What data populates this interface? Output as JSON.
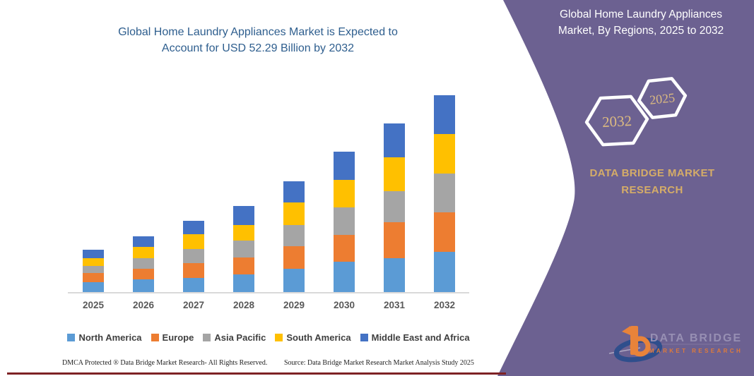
{
  "left": {
    "title_line1": "Global Home Laundry Appliances Market is Expected to",
    "title_line2": "Account for USD 52.29 Billion by 2032",
    "footer_left": "DMCA Protected ® Data Bridge Market Research-  All Rights Reserved.",
    "footer_right": "Source: Data Bridge Market Research  Market Analysis Study 2025"
  },
  "chart_data": {
    "type": "bar",
    "stacked": true,
    "title": "Global Home Laundry Appliances Market is Expected to Account for USD 52.29 Billion by 2032",
    "unit": "USD Billion",
    "categories": [
      "2025",
      "2026",
      "2027",
      "2028",
      "2029",
      "2030",
      "2031",
      "2032"
    ],
    "series": [
      {
        "name": "North America",
        "color": "#5B9BD5",
        "values": [
          2.63,
          3.3,
          3.81,
          4.6,
          6.25,
          8.13,
          8.93,
          10.7
        ]
      },
      {
        "name": "Europe",
        "color": "#ED7D31",
        "values": [
          2.5,
          2.95,
          3.89,
          4.51,
          5.95,
          7.08,
          9.57,
          10.44
        ]
      },
      {
        "name": "Asia Pacific",
        "color": "#A5A5A5",
        "values": [
          1.76,
          2.82,
          3.75,
          4.55,
          5.63,
          7.32,
          8.26,
          10.32
        ]
      },
      {
        "name": "South America",
        "color": "#FFC000",
        "values": [
          2.18,
          3.0,
          3.87,
          4.2,
          5.93,
          7.19,
          9.08,
          10.45
        ]
      },
      {
        "name": "Middle East and Africa",
        "color": "#4472C4",
        "values": [
          2.2,
          2.82,
          3.64,
          5.0,
          5.63,
          7.51,
          8.88,
          10.38
        ]
      }
    ],
    "totals": [
      11.27,
      14.89,
      18.96,
      22.86,
      29.39,
      37.23,
      44.72,
      52.29
    ],
    "xlabel": "",
    "ylabel": "",
    "ylim": [
      0,
      52.29
    ],
    "grid": false,
    "value_axis_visible": false,
    "legend_position": "bottom"
  },
  "panel": {
    "title_line1": "Global Home Laundry Appliances",
    "title_line2": "Market, By Regions, 2025 to 2032",
    "hex_back_label": "2032",
    "hex_front_label": "2025",
    "brand_line1": "DATA BRIDGE MARKET",
    "brand_line2": "RESEARCH",
    "logo_text_top": "DATA BRIDGE",
    "logo_text_bottom": "MARKET RESEARCH",
    "colors": {
      "panel_purple": "#6C6191",
      "gold": "#D5AC68",
      "hex_text_gold": "#DCBA80",
      "title_blue": "#2E5E8E",
      "logo_orange": "#E8833A",
      "logo_blue": "#2F4E8C"
    }
  }
}
